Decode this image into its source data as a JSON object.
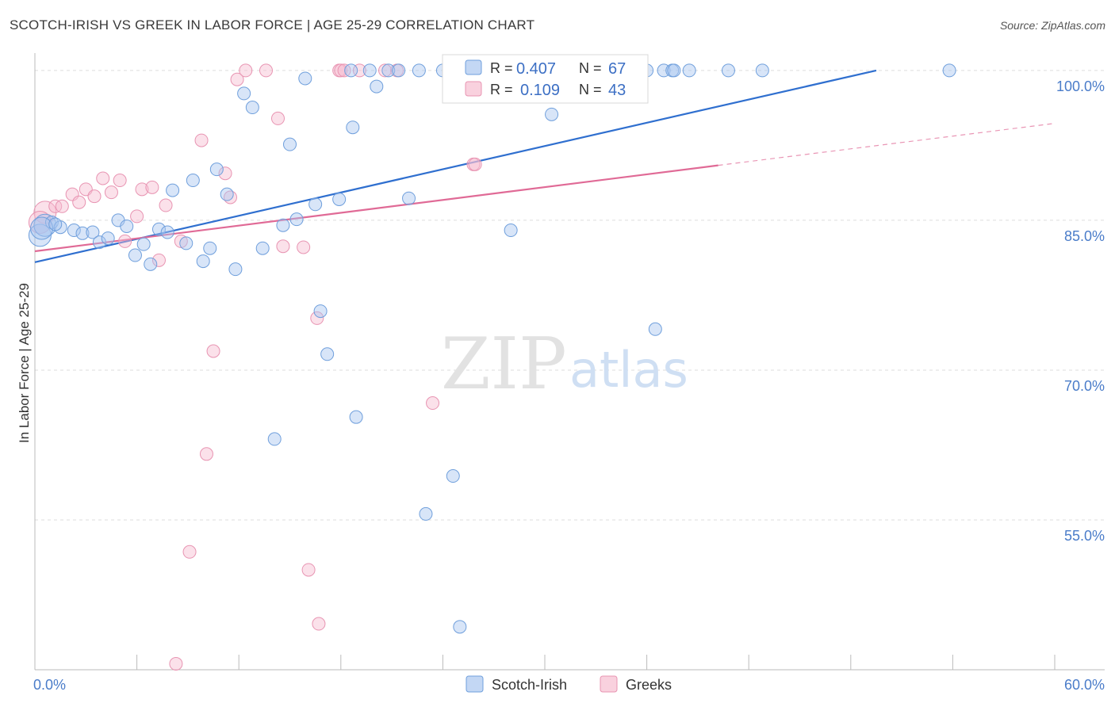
{
  "header": {
    "title": "SCOTCH-IRISH VS GREEK IN LABOR FORCE | AGE 25-29 CORRELATION CHART",
    "source": "Source: ZipAtlas.com"
  },
  "watermark": {
    "zip": "ZIP",
    "atlas": "atlas"
  },
  "colors": {
    "blue_fill": "#a9c6f0",
    "blue_stroke": "#6f9fdc",
    "blue_line": "#2f6fcf",
    "pink_fill": "#f6bdd0",
    "pink_stroke": "#e894b2",
    "pink_line": "#e06a96",
    "grid": "#dddddd",
    "tick_text": "#4a7cc9"
  },
  "legend": {
    "rows": [
      {
        "r_label": "R = ",
        "r_value": "0.407",
        "n_label": "N = ",
        "n_value": "67"
      },
      {
        "r_label": "R = ",
        "r_value": "0.109",
        "n_label": "N = ",
        "n_value": "43"
      }
    ]
  },
  "chart_data": {
    "type": "scatter",
    "title": "SCOTCH-IRISH VS GREEK IN LABOR FORCE | AGE 25-29 CORRELATION CHART",
    "xlabel": "",
    "ylabel": "In Labor Force | Age 25-29",
    "xlim": [
      0,
      60
    ],
    "ylim": [
      40,
      101.5
    ],
    "x_tick_labels": [
      "0.0%",
      "60.0%"
    ],
    "y_ticks": [
      100,
      85,
      70,
      55
    ],
    "y_tick_labels": [
      "100.0%",
      "85.0%",
      "70.0%",
      "55.0%"
    ],
    "grid": true,
    "series": [
      {
        "name": "Scotch-Irish",
        "R": 0.407,
        "N": 67,
        "trend": {
          "x0": 0,
          "y0": 80.8,
          "x1": 49.5,
          "y1": 100.0,
          "style": "solid"
        },
        "points": [
          [
            0.3,
            83.5
          ],
          [
            0.6,
            84.5
          ],
          [
            1.0,
            84.8
          ],
          [
            1.5,
            84.3
          ],
          [
            2.3,
            84.0
          ],
          [
            2.8,
            83.7
          ],
          [
            3.4,
            83.8
          ],
          [
            3.8,
            82.8
          ],
          [
            4.3,
            83.2
          ],
          [
            4.9,
            85.0
          ],
          [
            5.4,
            84.4
          ],
          [
            5.9,
            81.5
          ],
          [
            6.4,
            82.6
          ],
          [
            6.8,
            80.6
          ],
          [
            7.3,
            84.1
          ],
          [
            7.8,
            83.8
          ],
          [
            8.1,
            88.0
          ],
          [
            8.9,
            82.7
          ],
          [
            9.3,
            89.0
          ],
          [
            9.9,
            80.9
          ],
          [
            10.3,
            82.2
          ],
          [
            10.7,
            90.1
          ],
          [
            11.3,
            87.6
          ],
          [
            11.8,
            80.1
          ],
          [
            12.3,
            97.7
          ],
          [
            12.8,
            96.3
          ],
          [
            13.4,
            82.2
          ],
          [
            14.1,
            63.1
          ],
          [
            14.6,
            84.5
          ],
          [
            15.0,
            92.6
          ],
          [
            15.4,
            85.1
          ],
          [
            15.9,
            99.2
          ],
          [
            16.5,
            86.6
          ],
          [
            16.8,
            75.9
          ],
          [
            17.2,
            71.6
          ],
          [
            17.9,
            87.1
          ],
          [
            18.6,
            100.0
          ],
          [
            18.7,
            94.3
          ],
          [
            18.9,
            65.3
          ],
          [
            19.7,
            100.0
          ],
          [
            20.1,
            98.4
          ],
          [
            20.8,
            100.0
          ],
          [
            21.4,
            100.0
          ],
          [
            22.0,
            87.2
          ],
          [
            22.6,
            100.0
          ],
          [
            23.0,
            55.6
          ],
          [
            24.0,
            100.0
          ],
          [
            24.6,
            59.4
          ],
          [
            25.0,
            44.3
          ],
          [
            26.3,
            100.0
          ],
          [
            27.4,
            100.0
          ],
          [
            28.0,
            84.0
          ],
          [
            29.3,
            100.0
          ],
          [
            30.4,
            95.6
          ],
          [
            32.6,
            100.0
          ],
          [
            35.0,
            100.0
          ],
          [
            36.0,
            100.0
          ],
          [
            36.5,
            74.1
          ],
          [
            37.0,
            100.0
          ],
          [
            37.5,
            100.0
          ],
          [
            37.6,
            100.0
          ],
          [
            38.5,
            100.0
          ],
          [
            40.8,
            100.0
          ],
          [
            42.8,
            100.0
          ],
          [
            53.8,
            100.0
          ],
          [
            0.4,
            84.2
          ],
          [
            1.2,
            84.6
          ]
        ]
      },
      {
        "name": "Greeks",
        "R": 0.109,
        "N": 43,
        "trend": {
          "x0": 0,
          "y0": 81.9,
          "x1": 40.2,
          "y1": 90.5,
          "dash_x1": 60,
          "dash_y1": 94.7,
          "style": "solid+dashed"
        },
        "points": [
          [
            0.6,
            85.8
          ],
          [
            1.2,
            86.4
          ],
          [
            1.6,
            86.4
          ],
          [
            2.2,
            87.6
          ],
          [
            2.6,
            86.8
          ],
          [
            3.0,
            88.1
          ],
          [
            3.5,
            87.4
          ],
          [
            4.0,
            89.2
          ],
          [
            4.5,
            87.8
          ],
          [
            5.0,
            89.0
          ],
          [
            5.3,
            82.9
          ],
          [
            6.0,
            85.4
          ],
          [
            6.3,
            88.1
          ],
          [
            6.9,
            88.3
          ],
          [
            7.3,
            81.0
          ],
          [
            7.7,
            86.5
          ],
          [
            8.3,
            40.6
          ],
          [
            8.6,
            82.9
          ],
          [
            9.1,
            51.8
          ],
          [
            9.8,
            93.0
          ],
          [
            10.1,
            61.6
          ],
          [
            10.5,
            71.9
          ],
          [
            11.2,
            89.7
          ],
          [
            11.5,
            87.3
          ],
          [
            11.9,
            99.1
          ],
          [
            12.4,
            100.0
          ],
          [
            13.6,
            100.0
          ],
          [
            14.3,
            95.2
          ],
          [
            14.6,
            82.4
          ],
          [
            15.8,
            82.3
          ],
          [
            16.1,
            50.0
          ],
          [
            16.6,
            75.2
          ],
          [
            16.7,
            44.6
          ],
          [
            17.9,
            100.0
          ],
          [
            18.0,
            100.0
          ],
          [
            18.2,
            100.0
          ],
          [
            19.1,
            100.0
          ],
          [
            20.6,
            100.0
          ],
          [
            21.3,
            100.0
          ],
          [
            23.4,
            66.7
          ],
          [
            25.8,
            90.6
          ],
          [
            25.9,
            90.6
          ],
          [
            0.3,
            84.8
          ]
        ]
      }
    ]
  },
  "bottom_legend": {
    "items": [
      "Scotch-Irish",
      "Greeks"
    ]
  }
}
